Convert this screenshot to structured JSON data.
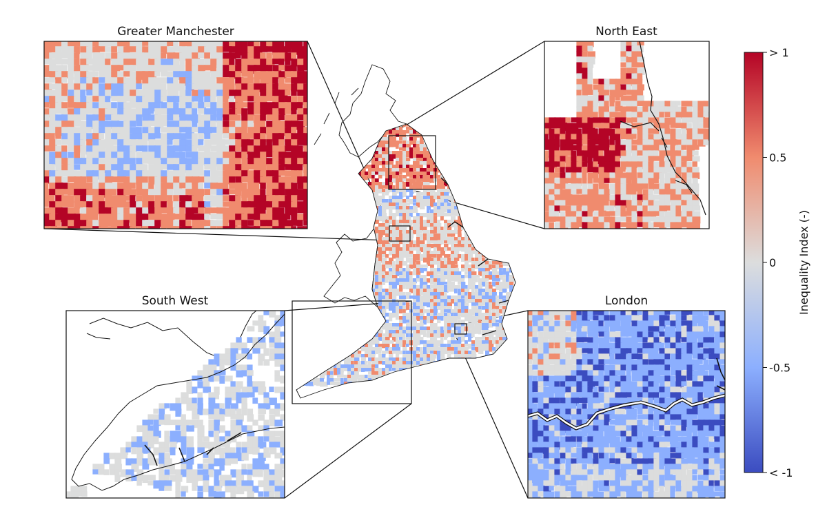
{
  "insets": [
    {
      "title": "Greater Manchester"
    },
    {
      "title": "North East"
    },
    {
      "title": "South West"
    },
    {
      "title": "London"
    }
  ],
  "colorbar": {
    "label": "Inequality Index (-)",
    "ticks": [
      "> 1",
      "0.5",
      "0",
      "-0.5",
      "< -1"
    ],
    "tick_values": [
      1,
      0.5,
      0,
      -0.5,
      -1
    ],
    "colors": [
      "#b40426",
      "#f08b6e",
      "#dcdddd",
      "#8caffe",
      "#3b4cc0"
    ]
  },
  "colors": {
    "high": "#b40426",
    "mid_high": "#f08b6e",
    "neutral": "#dcdddd",
    "mid_low": "#8caffe",
    "low": "#3b4cc0"
  }
}
